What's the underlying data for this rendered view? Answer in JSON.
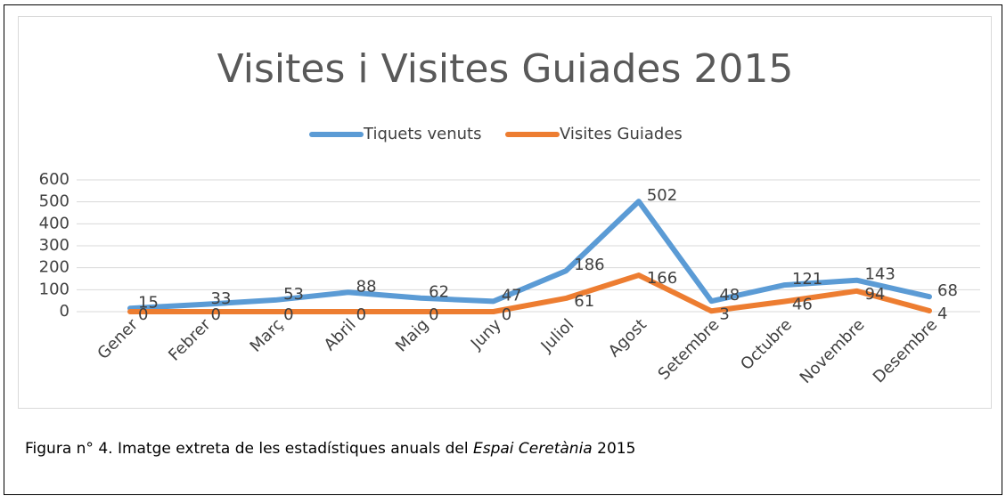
{
  "chart_data": {
    "type": "line",
    "title": "Visites i Visites Guiades 2015",
    "categories": [
      "Gener",
      "Febrer",
      "Març",
      "Abril",
      "Maig",
      "Juny",
      "Juliol",
      "Agost",
      "Setembre",
      "Octubre",
      "Novembre",
      "Desembre"
    ],
    "series": [
      {
        "name": "Tiquets venuts",
        "color": "#5b9bd5",
        "values": [
          15,
          33,
          53,
          88,
          62,
          47,
          186,
          502,
          48,
          121,
          143,
          68
        ]
      },
      {
        "name": "Visites Guiades",
        "color": "#ed7d31",
        "values": [
          0,
          0,
          0,
          0,
          0,
          0,
          61,
          166,
          3,
          46,
          94,
          4
        ]
      }
    ],
    "ylim": [
      0,
      600
    ],
    "yticks": [
      0,
      100,
      200,
      300,
      400,
      500,
      600
    ],
    "grid": true,
    "legend": "top"
  },
  "caption": [
    "Figura n° 4. Imatge extreta de les estadístiques anuals del ",
    "Espai Ceretània",
    " 2015"
  ]
}
